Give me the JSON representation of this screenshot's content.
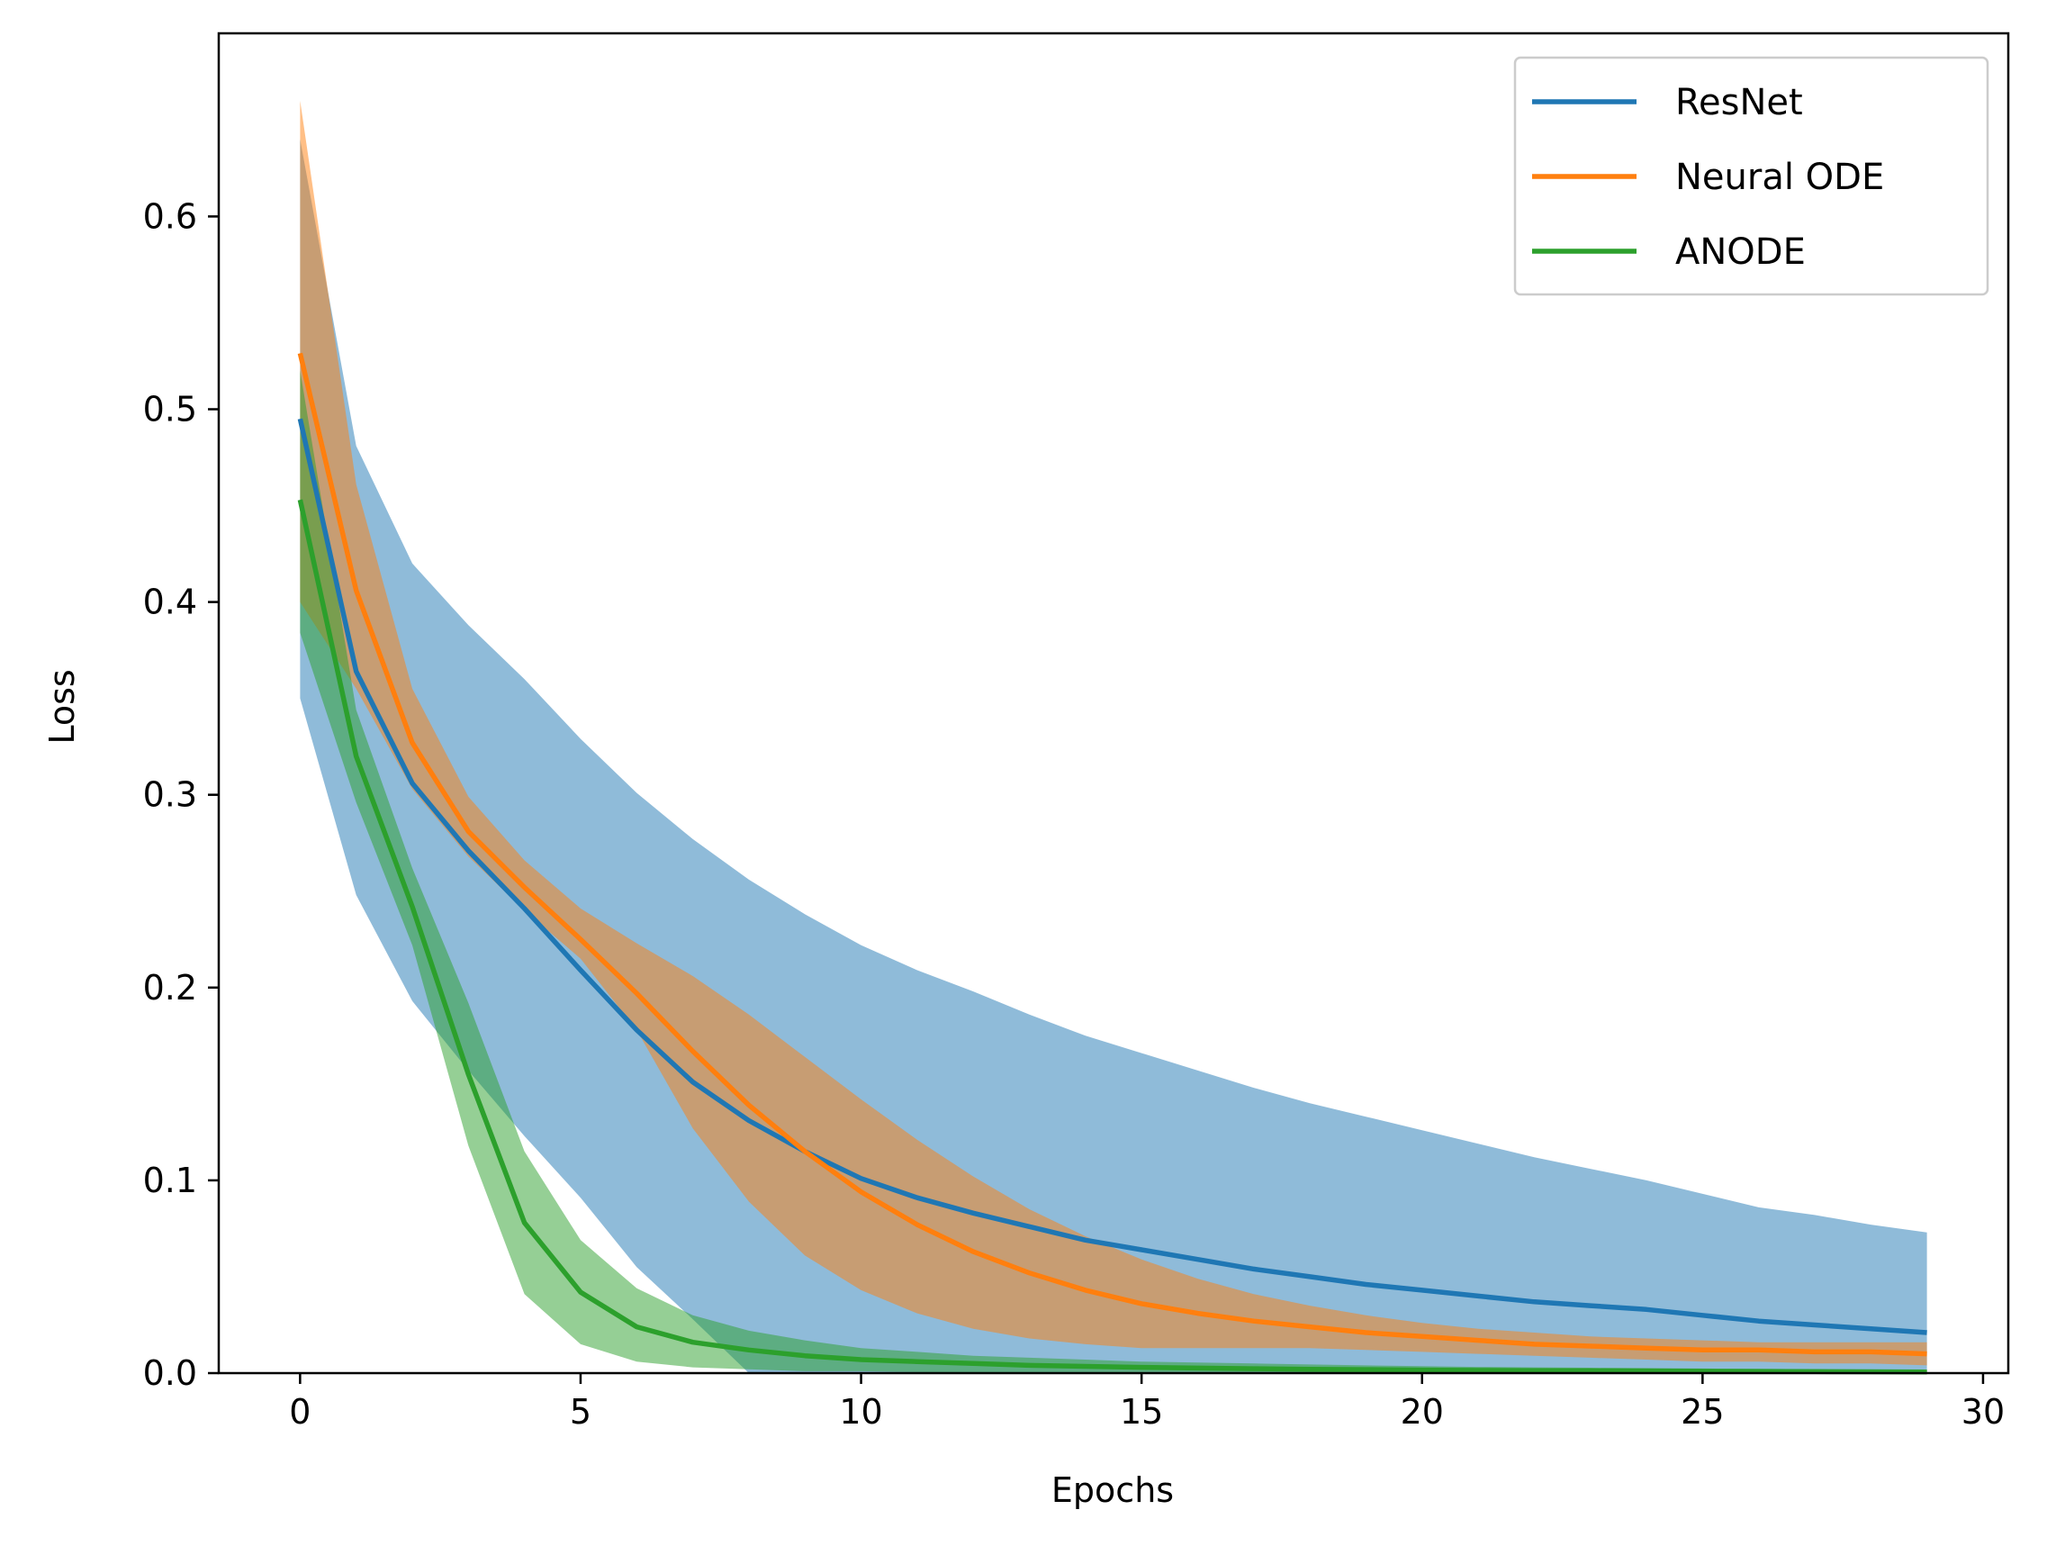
{
  "chart_data": {
    "type": "line",
    "title": "",
    "xlabel": "Epochs",
    "ylabel": "Loss",
    "xlim": [
      -1.45,
      30.45
    ],
    "ylim": [
      0.0,
      0.695
    ],
    "xticks": [
      0,
      5,
      10,
      15,
      20,
      25,
      30
    ],
    "yticks": [
      0.0,
      0.1,
      0.2,
      0.3,
      0.4,
      0.5,
      0.6
    ],
    "xtick_labels": [
      "0",
      "5",
      "10",
      "15",
      "20",
      "25",
      "30"
    ],
    "ytick_labels": [
      "0.0",
      "0.1",
      "0.2",
      "0.3",
      "0.4",
      "0.5",
      "0.6"
    ],
    "grid": false,
    "legend_position": "top-right",
    "x": [
      0,
      1,
      2,
      3,
      4,
      5,
      6,
      7,
      8,
      9,
      10,
      11,
      12,
      13,
      14,
      15,
      16,
      17,
      18,
      19,
      20,
      21,
      22,
      23,
      24,
      25,
      26,
      27,
      28,
      29
    ],
    "series": [
      {
        "name": "ResNet",
        "color": "#1f77b4",
        "values": [
          0.495,
          0.364,
          0.306,
          0.271,
          0.241,
          0.209,
          0.178,
          0.151,
          0.131,
          0.115,
          0.101,
          0.091,
          0.083,
          0.076,
          0.069,
          0.064,
          0.059,
          0.054,
          0.05,
          0.046,
          0.043,
          0.04,
          0.037,
          0.035,
          0.033,
          0.03,
          0.027,
          0.025,
          0.023,
          0.021
        ],
        "lower": [
          0.35,
          0.248,
          0.193,
          0.157,
          0.123,
          0.091,
          0.055,
          0.028,
          0.0,
          0.0,
          0.0,
          0.0,
          0.0,
          0.0,
          0.0,
          0.0,
          0.0,
          0.0,
          0.0,
          0.0,
          0.0,
          0.0,
          0.0,
          0.0,
          0.0,
          0.0,
          0.0,
          0.0,
          0.0,
          0.0
        ],
        "upper": [
          0.64,
          0.481,
          0.42,
          0.388,
          0.36,
          0.329,
          0.301,
          0.277,
          0.256,
          0.238,
          0.222,
          0.209,
          0.198,
          0.186,
          0.175,
          0.166,
          0.157,
          0.148,
          0.14,
          0.133,
          0.126,
          0.119,
          0.112,
          0.106,
          0.1,
          0.093,
          0.086,
          0.082,
          0.077,
          0.073
        ]
      },
      {
        "name": "Neural ODE",
        "color": "#ff7f0e",
        "values": [
          0.529,
          0.406,
          0.327,
          0.281,
          0.252,
          0.225,
          0.197,
          0.167,
          0.139,
          0.115,
          0.094,
          0.077,
          0.063,
          0.052,
          0.043,
          0.036,
          0.031,
          0.027,
          0.024,
          0.021,
          0.019,
          0.017,
          0.015,
          0.014,
          0.013,
          0.012,
          0.012,
          0.011,
          0.011,
          0.01
        ],
        "lower": [
          0.4,
          0.355,
          0.303,
          0.268,
          0.24,
          0.215,
          0.178,
          0.127,
          0.089,
          0.061,
          0.043,
          0.031,
          0.023,
          0.018,
          0.015,
          0.013,
          0.013,
          0.013,
          0.013,
          0.012,
          0.011,
          0.01,
          0.009,
          0.008,
          0.007,
          0.006,
          0.006,
          0.005,
          0.005,
          0.004
        ],
        "upper": [
          0.66,
          0.461,
          0.355,
          0.299,
          0.266,
          0.241,
          0.223,
          0.206,
          0.186,
          0.164,
          0.142,
          0.121,
          0.102,
          0.085,
          0.071,
          0.059,
          0.049,
          0.041,
          0.035,
          0.03,
          0.026,
          0.023,
          0.021,
          0.019,
          0.018,
          0.017,
          0.016,
          0.016,
          0.016,
          0.016
        ]
      },
      {
        "name": "ANODE",
        "color": "#2ca02c",
        "values": [
          0.453,
          0.32,
          0.242,
          0.155,
          0.078,
          0.042,
          0.024,
          0.016,
          0.012,
          0.009,
          0.007,
          0.006,
          0.005,
          0.004,
          0.0035,
          0.003,
          0.0026,
          0.0023,
          0.002,
          0.0018,
          0.0016,
          0.0014,
          0.0013,
          0.0012,
          0.0011,
          0.001,
          0.0009,
          0.0008,
          0.0007,
          0.0006
        ],
        "lower": [
          0.384,
          0.296,
          0.222,
          0.118,
          0.041,
          0.015,
          0.006,
          0.003,
          0.002,
          0.001,
          0.001,
          0.0005,
          0.0003,
          0.0002,
          0.0001,
          0.0,
          0.0,
          0.0,
          0.0,
          0.0,
          0.0,
          0.0,
          0.0,
          0.0,
          0.0,
          0.0,
          0.0,
          0.0,
          0.0,
          0.0
        ],
        "upper": [
          0.52,
          0.344,
          0.262,
          0.192,
          0.115,
          0.069,
          0.044,
          0.03,
          0.022,
          0.017,
          0.013,
          0.011,
          0.009,
          0.008,
          0.007,
          0.006,
          0.0055,
          0.005,
          0.0045,
          0.004,
          0.0036,
          0.0032,
          0.003,
          0.0028,
          0.0026,
          0.0024,
          0.0022,
          0.002,
          0.0018,
          0.0016
        ]
      }
    ]
  }
}
